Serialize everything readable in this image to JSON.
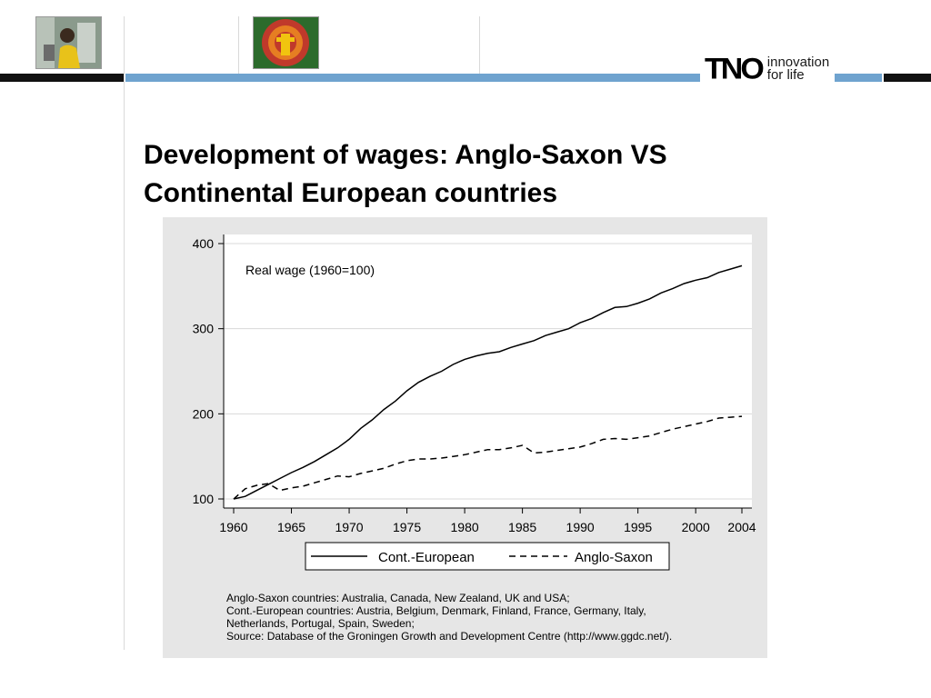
{
  "slide": {
    "title_line1": "Development of wages: Anglo-Saxon VS",
    "title_line2": "Continental European countries"
  },
  "header": {
    "logo_mark": "TNO",
    "logo_tagline_line1": "innovation",
    "logo_tagline_line2": "for life",
    "accent_color": "#6fa3cf"
  },
  "chart_data": {
    "type": "line",
    "annotation": "Real wage (1960=100)",
    "xlim": [
      1960,
      2004
    ],
    "ylim": [
      100,
      400
    ],
    "x_ticks": [
      1960,
      1965,
      1970,
      1975,
      1980,
      1985,
      1990,
      1995,
      2000,
      2004
    ],
    "y_ticks": [
      100,
      200,
      300,
      400
    ],
    "grid": true,
    "legend_position": "bottom",
    "x": [
      1960,
      1961,
      1962,
      1963,
      1964,
      1965,
      1966,
      1967,
      1968,
      1969,
      1970,
      1971,
      1972,
      1973,
      1974,
      1975,
      1976,
      1977,
      1978,
      1979,
      1980,
      1981,
      1982,
      1983,
      1984,
      1985,
      1986,
      1987,
      1988,
      1989,
      1990,
      1991,
      1992,
      1993,
      1994,
      1995,
      1996,
      1997,
      1998,
      1999,
      2000,
      2001,
      2002,
      2003,
      2004
    ],
    "series": [
      {
        "name": "Cont.-European",
        "style": "solid",
        "values": [
          100,
          103,
          110,
          117,
          124,
          131,
          137,
          144,
          152,
          160,
          170,
          183,
          193,
          205,
          215,
          227,
          237,
          244,
          250,
          258,
          264,
          268,
          271,
          273,
          278,
          282,
          286,
          292,
          296,
          300,
          307,
          312,
          319,
          325,
          326,
          330,
          335,
          342,
          347,
          353,
          357,
          360,
          366,
          370,
          374
        ]
      },
      {
        "name": "Anglo-Saxon",
        "style": "dashed",
        "values": [
          100,
          112,
          116,
          118,
          110,
          113,
          115,
          119,
          123,
          127,
          126,
          130,
          133,
          136,
          141,
          145,
          147,
          147,
          148,
          150,
          152,
          155,
          158,
          158,
          160,
          163,
          154,
          155,
          157,
          159,
          161,
          165,
          170,
          171,
          170,
          172,
          174,
          178,
          182,
          185,
          188,
          191,
          195,
          196,
          197
        ]
      }
    ]
  },
  "footnotes": [
    "Anglo-Saxon countries: Australia, Canada, New Zealand, UK and USA;",
    "Cont.-European countries: Austria, Belgium, Denmark, Finland, France, Germany, Italy,",
    "Netherlands, Portugal, Spain, Sweden;",
    "Source: Database of the Groningen Growth and Development Centre (http://www.ggdc.net/)."
  ]
}
